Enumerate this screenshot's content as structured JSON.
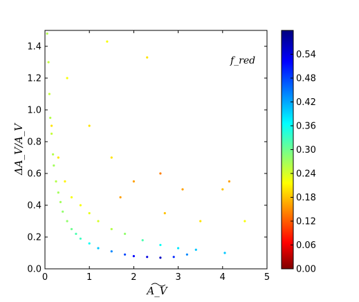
{
  "chart_data": {
    "type": "scatter",
    "xlabel": "A_V",
    "ylabel": "ΔA_V/A_V",
    "annotation": "f_red",
    "xlim": [
      0,
      5
    ],
    "ylim": [
      0,
      1.5
    ],
    "xticks": [
      0,
      1,
      2,
      3,
      4,
      5
    ],
    "yticks": [
      0.0,
      0.2,
      0.4,
      0.6,
      0.8,
      1.0,
      1.2,
      1.4
    ],
    "xtick_labels": [
      "0",
      "1",
      "2",
      "3",
      "4",
      "5"
    ],
    "ytick_labels": [
      "0.0",
      "0.2",
      "0.4",
      "0.6",
      "0.8",
      "1.0",
      "1.2",
      "1.4"
    ],
    "grid": false,
    "colorbar": {
      "label": "f_red",
      "range": [
        0.0,
        0.6
      ],
      "colormap": "jet_r",
      "ticks": [
        0.0,
        0.06,
        0.12,
        0.18,
        0.24,
        0.3,
        0.36,
        0.42,
        0.48,
        0.54
      ],
      "tick_labels": [
        "0.00",
        "0.06",
        "0.12",
        "0.18",
        "0.24",
        "0.30",
        "0.36",
        "0.42",
        "0.48",
        "0.54"
      ]
    },
    "points": [
      [
        0.05,
        1.48,
        0.26
      ],
      [
        0.08,
        1.3,
        0.25
      ],
      [
        0.1,
        1.1,
        0.25
      ],
      [
        0.12,
        0.95,
        0.26
      ],
      [
        0.15,
        0.85,
        0.25
      ],
      [
        0.18,
        0.72,
        0.26
      ],
      [
        0.2,
        0.65,
        0.27
      ],
      [
        0.25,
        0.55,
        0.26
      ],
      [
        0.3,
        0.48,
        0.27
      ],
      [
        0.35,
        0.42,
        0.27
      ],
      [
        0.4,
        0.36,
        0.28
      ],
      [
        0.5,
        0.3,
        0.28
      ],
      [
        0.6,
        0.25,
        0.3
      ],
      [
        0.7,
        0.22,
        0.32
      ],
      [
        0.8,
        0.19,
        0.33
      ],
      [
        1.0,
        0.16,
        0.36
      ],
      [
        1.2,
        0.13,
        0.4
      ],
      [
        1.5,
        0.11,
        0.44
      ],
      [
        1.8,
        0.09,
        0.48
      ],
      [
        2.0,
        0.08,
        0.52
      ],
      [
        2.3,
        0.075,
        0.54
      ],
      [
        2.6,
        0.07,
        0.56
      ],
      [
        2.9,
        0.075,
        0.5
      ],
      [
        3.2,
        0.09,
        0.44
      ],
      [
        0.15,
        0.9,
        0.2
      ],
      [
        0.3,
        0.7,
        0.2
      ],
      [
        0.45,
        0.55,
        0.21
      ],
      [
        0.6,
        0.45,
        0.22
      ],
      [
        0.8,
        0.4,
        0.22
      ],
      [
        1.0,
        0.35,
        0.23
      ],
      [
        1.2,
        0.3,
        0.24
      ],
      [
        1.5,
        0.25,
        0.26
      ],
      [
        1.8,
        0.22,
        0.28
      ],
      [
        2.2,
        0.18,
        0.32
      ],
      [
        2.6,
        0.15,
        0.36
      ],
      [
        3.0,
        0.13,
        0.38
      ],
      [
        3.4,
        0.12,
        0.4
      ],
      [
        4.05,
        0.1,
        0.4
      ],
      [
        0.5,
        1.2,
        0.22
      ],
      [
        1.0,
        0.9,
        0.2
      ],
      [
        1.5,
        0.7,
        0.2
      ],
      [
        2.0,
        0.55,
        0.16
      ],
      [
        2.3,
        1.33,
        0.2
      ],
      [
        1.4,
        1.43,
        0.22
      ],
      [
        2.6,
        0.6,
        0.14
      ],
      [
        3.1,
        0.5,
        0.16
      ],
      [
        4.0,
        0.5,
        0.18
      ],
      [
        4.5,
        0.3,
        0.22
      ],
      [
        4.15,
        0.55,
        0.16
      ],
      [
        3.5,
        0.3,
        0.2
      ],
      [
        2.7,
        0.35,
        0.18
      ],
      [
        1.7,
        0.45,
        0.16
      ]
    ]
  }
}
